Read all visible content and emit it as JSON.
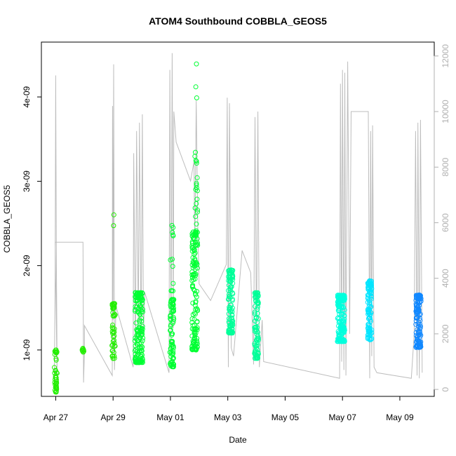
{
  "chart_data": {
    "type": "scatter",
    "title": "ATOM4 Southbound COBBLA_GEOS5",
    "xlabel": "Date",
    "ylabel": "COBBLA_GEOS5",
    "x_tick_labels": [
      "Apr 27",
      "Apr 29",
      "May 01",
      "May 03",
      "May 05",
      "May 07",
      "May 09"
    ],
    "x_tick_days": [
      0,
      2,
      4,
      6,
      8,
      10,
      12
    ],
    "xlim_days": [
      -0.5,
      13.2
    ],
    "ylim": [
      4.5e-10,
      4.65e-09
    ],
    "y_ticks": [
      1e-09,
      2e-09,
      3e-09,
      4e-09
    ],
    "y_tick_labels": [
      "1e-09",
      "2e-09",
      "3e-09",
      "4e-09"
    ],
    "ylim_right": [
      -250,
      12500
    ],
    "y_ticks_right": [
      0,
      2000,
      4000,
      6000,
      8000,
      10000,
      12000
    ],
    "y_tick_labels_right": [
      "0",
      "2000",
      "4000",
      "6000",
      "8000",
      "10000",
      "12000"
    ],
    "grid": false,
    "colors": {
      "altitude_line": "#bdbdbd",
      "point_scale": [
        "#22ee00",
        "#00ff33",
        "#00ff99",
        "#00ffdd",
        "#00e5ff",
        "#1188ff"
      ]
    },
    "point_clusters": [
      {
        "day": 0.0,
        "spread": 0.05,
        "n": 40,
        "y_min": 5e-10,
        "y_max": 1e-09,
        "color_index": 0
      },
      {
        "day": 0.95,
        "spread": 0.03,
        "n": 8,
        "y_min": 9.5e-10,
        "y_max": 1.02e-09,
        "color_index": 0
      },
      {
        "day": 2.02,
        "spread": 0.06,
        "n": 50,
        "y_min": 9e-10,
        "y_max": 1.55e-09,
        "color_index": 0
      },
      {
        "day": 2.02,
        "spread": 0.02,
        "n": 2,
        "y_min": 2.38e-09,
        "y_max": 2.7e-09,
        "color_index": 0
      },
      {
        "day": 2.9,
        "spread": 0.14,
        "n": 160,
        "y_min": 8.5e-10,
        "y_max": 1.68e-09,
        "color_index": 1
      },
      {
        "day": 4.05,
        "spread": 0.07,
        "n": 80,
        "y_min": 8e-10,
        "y_max": 1.6e-09,
        "color_index": 1
      },
      {
        "day": 4.05,
        "spread": 0.05,
        "n": 12,
        "y_min": 1.7e-09,
        "y_max": 2.5e-09,
        "color_index": 1
      },
      {
        "day": 4.85,
        "spread": 0.1,
        "n": 140,
        "y_min": 1e-09,
        "y_max": 2.4e-09,
        "color_index": 1
      },
      {
        "day": 4.9,
        "spread": 0.05,
        "n": 20,
        "y_min": 2.4e-09,
        "y_max": 3.35e-09,
        "color_index": 1
      },
      {
        "day": 4.9,
        "spread": 0.02,
        "n": 3,
        "y_min": 3.68e-09,
        "y_max": 4.45e-09,
        "color_index": 1
      },
      {
        "day": 6.1,
        "spread": 0.08,
        "n": 110,
        "y_min": 1.2e-09,
        "y_max": 1.95e-09,
        "color_index": 2
      },
      {
        "day": 7.0,
        "spread": 0.07,
        "n": 90,
        "y_min": 9e-10,
        "y_max": 1.68e-09,
        "color_index": 2
      },
      {
        "day": 9.95,
        "spread": 0.13,
        "n": 170,
        "y_min": 1.1e-09,
        "y_max": 1.65e-09,
        "color_index": 3
      },
      {
        "day": 10.95,
        "spread": 0.07,
        "n": 100,
        "y_min": 1.12e-09,
        "y_max": 1.82e-09,
        "color_index": 4
      },
      {
        "day": 12.65,
        "spread": 0.09,
        "n": 130,
        "y_min": 1.03e-09,
        "y_max": 1.65e-09,
        "color_index": 5
      }
    ],
    "altitude_track": [
      [
        -0.05,
        300
      ],
      [
        -0.02,
        4000
      ],
      [
        0.0,
        11300
      ],
      [
        0.02,
        5000
      ],
      [
        0.05,
        300
      ],
      [
        -0.02,
        5300
      ],
      [
        0.95,
        5300
      ],
      [
        0.97,
        250
      ],
      [
        1.0,
        1300
      ],
      [
        1.0,
        2300
      ],
      [
        1.97,
        500
      ],
      [
        1.98,
        10200
      ],
      [
        2.0,
        2500
      ],
      [
        2.02,
        11700
      ],
      [
        2.05,
        700
      ],
      [
        2.1,
        3000
      ],
      [
        2.7,
        800
      ],
      [
        2.72,
        8500
      ],
      [
        2.78,
        1200
      ],
      [
        2.82,
        9300
      ],
      [
        2.88,
        2200
      ],
      [
        2.92,
        9600
      ],
      [
        2.98,
        1500
      ],
      [
        3.02,
        9900
      ],
      [
        3.06,
        2000
      ],
      [
        3.1,
        3500
      ],
      [
        3.95,
        600
      ],
      [
        3.98,
        11500
      ],
      [
        4.02,
        1500
      ],
      [
        4.06,
        12100
      ],
      [
        4.1,
        2200
      ],
      [
        4.12,
        10000
      ],
      [
        4.2,
        8900
      ],
      [
        4.7,
        7500
      ],
      [
        4.82,
        8200
      ],
      [
        4.85,
        5000
      ],
      [
        4.9,
        10400
      ],
      [
        4.95,
        6000
      ],
      [
        5.0,
        3800
      ],
      [
        5.4,
        3200
      ],
      [
        5.95,
        4500
      ],
      [
        5.98,
        10500
      ],
      [
        6.02,
        800
      ],
      [
        6.06,
        10300
      ],
      [
        6.12,
        1500
      ],
      [
        6.2,
        1200
      ],
      [
        6.5,
        5000
      ],
      [
        6.8,
        4200
      ],
      [
        6.9,
        900
      ],
      [
        6.95,
        9800
      ],
      [
        7.0,
        1800
      ],
      [
        7.05,
        10000
      ],
      [
        7.1,
        800
      ],
      [
        7.2,
        2500
      ],
      [
        7.25,
        1000
      ],
      [
        9.9,
        400
      ],
      [
        9.93,
        11000
      ],
      [
        9.97,
        1000
      ],
      [
        10.0,
        11500
      ],
      [
        10.05,
        700
      ],
      [
        10.08,
        11400
      ],
      [
        10.12,
        500
      ],
      [
        10.18,
        11800
      ],
      [
        10.25,
        2000
      ],
      [
        10.3,
        10000
      ],
      [
        10.9,
        10000
      ],
      [
        10.95,
        400
      ],
      [
        10.98,
        9300
      ],
      [
        11.02,
        1200
      ],
      [
        11.05,
        9500
      ],
      [
        11.1,
        800
      ],
      [
        11.2,
        600
      ],
      [
        12.4,
        400
      ],
      [
        12.5,
        2000
      ],
      [
        12.55,
        9300
      ],
      [
        12.6,
        500
      ],
      [
        12.63,
        9600
      ],
      [
        12.68,
        400
      ],
      [
        12.72,
        9700
      ],
      [
        12.78,
        600
      ]
    ]
  }
}
